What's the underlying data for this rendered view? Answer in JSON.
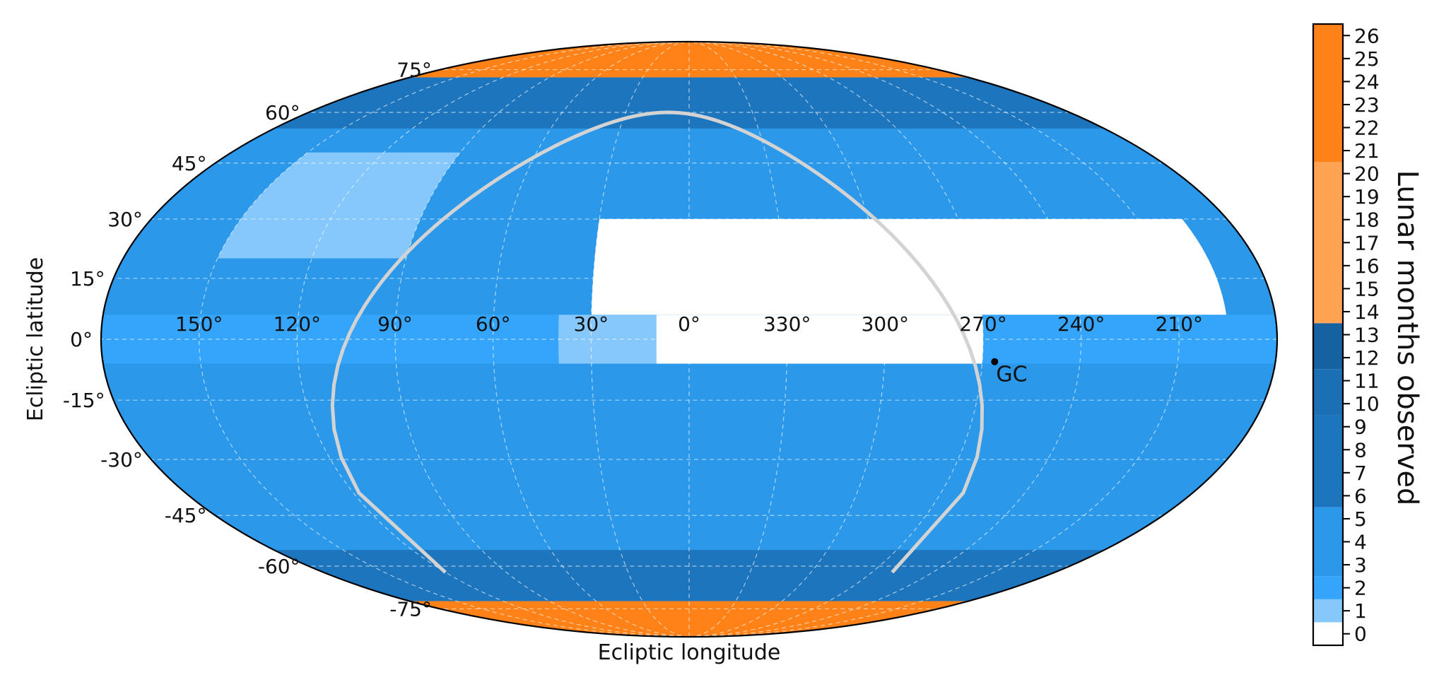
{
  "chart_data": {
    "type": "heatmap",
    "projection": "mollweide",
    "xlabel": "Ecliptic longitude",
    "ylabel": "Ecliptic latitude",
    "longitude_ticks": [
      "150°",
      "120°",
      "90°",
      "60°",
      "30°",
      "0°",
      "330°",
      "300°",
      "270°",
      "240°",
      "210°"
    ],
    "longitude_values": [
      150,
      120,
      90,
      60,
      30,
      0,
      -30,
      -60,
      -90,
      -120,
      -150
    ],
    "latitude_ticks": [
      "75°",
      "60°",
      "45°",
      "30°",
      "15°",
      "0°",
      "-15°",
      "-30°",
      "-45°",
      "-60°",
      "-75°"
    ],
    "latitude_values": [
      75,
      60,
      45,
      30,
      15,
      0,
      -15,
      -30,
      -45,
      -60,
      -75
    ],
    "grid": true,
    "colorbar": {
      "label": "Lunar months observed",
      "range": [
        0,
        26
      ],
      "ticks": [
        "0",
        "1",
        "2",
        "3",
        "4",
        "5",
        "6",
        "7",
        "8",
        "9",
        "10",
        "11",
        "12",
        "13",
        "14",
        "15",
        "16",
        "17",
        "18",
        "19",
        "20",
        "21",
        "22",
        "23",
        "24",
        "25",
        "26"
      ],
      "bands": [
        {
          "from": 0,
          "to": 0.5,
          "color": "#ffffff"
        },
        {
          "from": 0.5,
          "to": 1.5,
          "color": "#86c8fb"
        },
        {
          "from": 1.5,
          "to": 2.5,
          "color": "#35a5fb"
        },
        {
          "from": 2.5,
          "to": 5.5,
          "color": "#2b98ea"
        },
        {
          "from": 5.5,
          "to": 9.5,
          "color": "#1d76bd"
        },
        {
          "from": 9.5,
          "to": 11.5,
          "color": "#1b6fb4"
        },
        {
          "from": 11.5,
          "to": 13.5,
          "color": "#16619f"
        },
        {
          "from": 13.5,
          "to": 20.5,
          "color": "#fea352"
        },
        {
          "from": 20.5,
          "to": 26.5,
          "color": "#fe8218"
        }
      ]
    },
    "coverage_regions": [
      {
        "name": "north-ecliptic-pole-cap",
        "lon": [
          -180,
          180
        ],
        "lat": [
          72,
          90
        ],
        "months": 26
      },
      {
        "name": "south-ecliptic-pole-cap",
        "lon": [
          -180,
          180
        ],
        "lat": [
          -90,
          -72
        ],
        "months": 26
      },
      {
        "name": "northern-high-latitude-overlap",
        "lon": [
          -180,
          180
        ],
        "lat": [
          55,
          72
        ],
        "months": 8
      },
      {
        "name": "northern-sky-main",
        "lon": [
          -180,
          180
        ],
        "lat": [
          6,
          55
        ],
        "months": 3
      },
      {
        "name": "northern-sector-1",
        "lon": [
          90,
          150
        ],
        "lat": [
          20,
          48
        ],
        "months": 1
      },
      {
        "name": "northern-gap",
        "lon": [
          -165,
          30
        ],
        "lat": [
          6,
          30
        ],
        "months": 0
      },
      {
        "name": "ecliptic-band",
        "lon": [
          -180,
          180
        ],
        "lat": [
          -6,
          6
        ],
        "months": 2
      },
      {
        "name": "ecliptic-band-gap",
        "lon": [
          -90,
          30
        ],
        "lat": [
          -6,
          6
        ],
        "months": 0
      },
      {
        "name": "ecliptic-band-sector-1",
        "lon": [
          10,
          40
        ],
        "lat": [
          -6,
          6
        ],
        "months": 1
      },
      {
        "name": "southern-sky-main",
        "lon": [
          -180,
          180
        ],
        "lat": [
          -72,
          -6
        ],
        "months": 3
      },
      {
        "name": "southern-high-latitude-overlap",
        "lon": [
          -180,
          180
        ],
        "lat": [
          -72,
          -55
        ],
        "months": 7
      }
    ],
    "overlays": [
      {
        "name": "galactic-plane",
        "color": "#d3d3d3"
      },
      {
        "name": "GC",
        "label": "GC",
        "lon": -93.8,
        "lat": -5.5
      }
    ],
    "colors": {
      "frame": "#000000",
      "grid": "#ffffff",
      "overlay": "#d3d3d3",
      "marker": "#000000"
    }
  }
}
